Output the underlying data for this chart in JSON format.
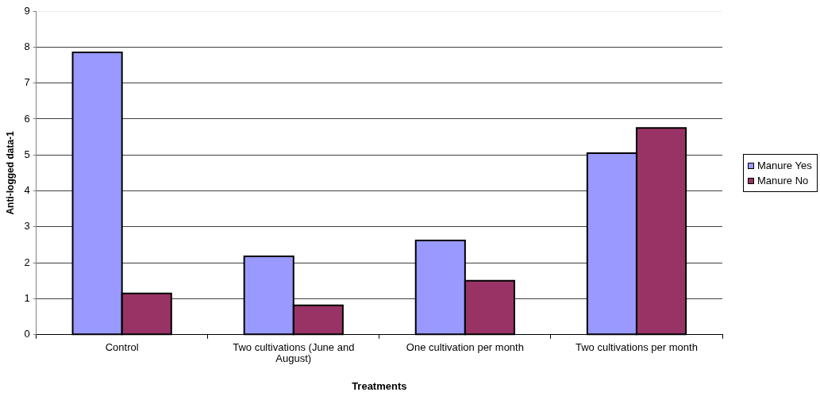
{
  "chart_data": {
    "type": "bar",
    "xlabel": "Treatments",
    "ylabel": "Anti-logged data-1",
    "categories": [
      "Control",
      "Two cultivations (June and August)",
      "One cultivation per month",
      "Two cultivations per month"
    ],
    "series": [
      {
        "name": "Manure Yes",
        "color": "#9999ff",
        "values": [
          7.85,
          2.18,
          2.62,
          5.05
        ]
      },
      {
        "name": "Manure No",
        "color": "#993366",
        "values": [
          1.15,
          0.82,
          1.5,
          5.75
        ]
      }
    ],
    "ylim": [
      0,
      9
    ],
    "yticks": [
      0,
      1,
      2,
      3,
      4,
      5,
      6,
      7,
      8,
      9
    ],
    "grid": "y",
    "legend": "right"
  }
}
